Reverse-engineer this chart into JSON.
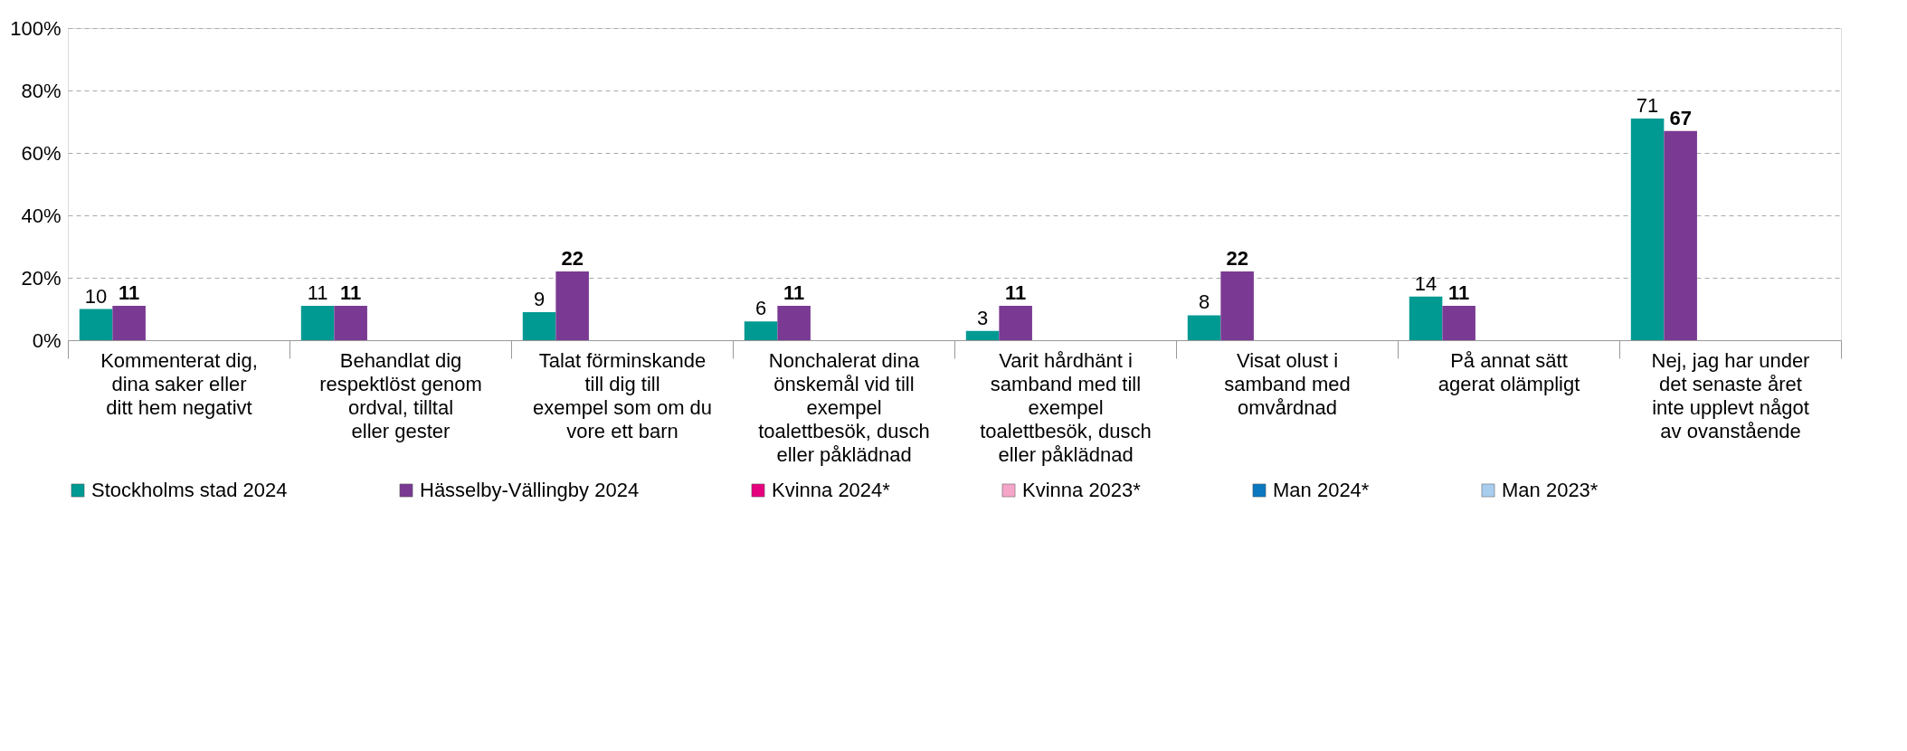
{
  "chart_data": {
    "type": "bar",
    "categories": [
      "Kommenterat dig, dina saker eller ditt hem negativt",
      "Behandlat dig respektlöst genom ordval, tilltal eller gester",
      "Talat förminskande till dig till exempel som om du vore ett barn",
      "Nonchalerat dina önskemål vid till exempel toalettbesök, dusch eller påklädnad",
      "Varit hårdhänt i samband med till exempel toalettbesök, dusch eller påklädnad",
      "Visat olust i samband med omvårdnad",
      "På annat sätt agerat olämpligt",
      "Nej, jag har under det senaste året inte upplevt något av ovanstående"
    ],
    "series": [
      {
        "name": "Stockholms stad 2024",
        "color": "#009a93",
        "values": [
          10,
          11,
          9,
          6,
          3,
          8,
          14,
          71
        ]
      },
      {
        "name": "Hässelby-Vällingby 2024",
        "color": "#7a3a93",
        "values": [
          11,
          11,
          22,
          11,
          11,
          22,
          11,
          67
        ]
      },
      {
        "name": "Kvinna 2024*",
        "color": "#e6007e",
        "values": [
          null,
          null,
          null,
          null,
          null,
          null,
          null,
          null
        ]
      },
      {
        "name": "Kvinna 2023*",
        "color": "#f5a6c8",
        "values": [
          null,
          null,
          null,
          null,
          null,
          null,
          null,
          null
        ]
      },
      {
        "name": "Man 2024*",
        "color": "#0a77c0",
        "values": [
          null,
          null,
          null,
          null,
          null,
          null,
          null,
          null
        ]
      },
      {
        "name": "Man 2023*",
        "color": "#a9cdee",
        "values": [
          null,
          null,
          null,
          null,
          null,
          null,
          null,
          null
        ]
      }
    ],
    "ylim": [
      0,
      100
    ],
    "yticks": [
      {
        "value": 0,
        "label": "0%"
      },
      {
        "value": 20,
        "label": "20%"
      },
      {
        "value": 40,
        "label": "40%"
      },
      {
        "value": 60,
        "label": "60%"
      },
      {
        "value": 80,
        "label": "80%"
      },
      {
        "value": 100,
        "label": "100%"
      }
    ],
    "grid": "y",
    "legend": "bottom",
    "data_labels": true
  }
}
